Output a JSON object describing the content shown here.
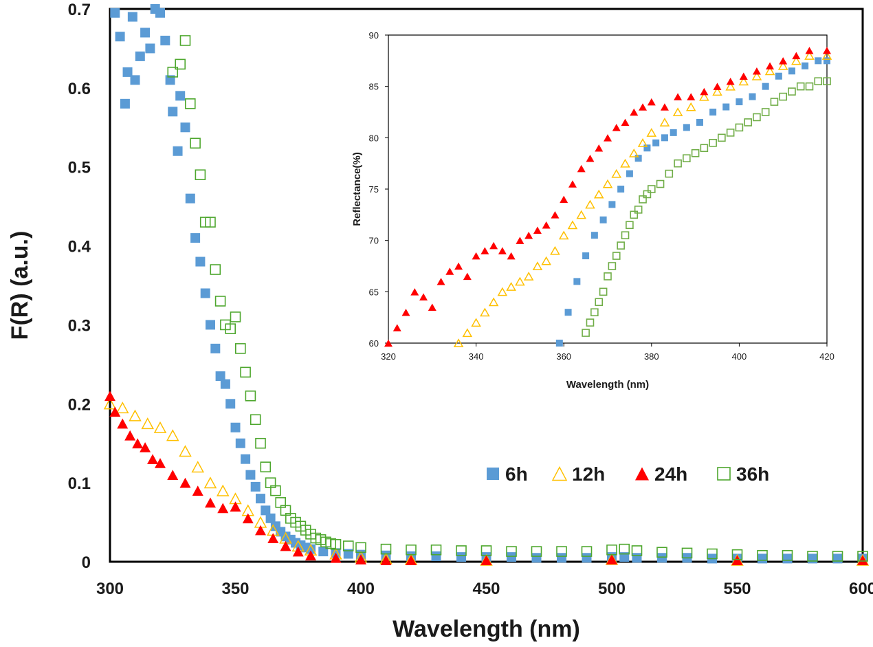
{
  "chart_data": [
    {
      "type": "scatter",
      "title": "",
      "xlabel": "Wavelength (nm)",
      "ylabel": "F(R) (a.u.)",
      "xlim": [
        300,
        600
      ],
      "ylim": [
        0,
        0.7
      ],
      "xticks": [
        "300",
        "350",
        "400",
        "450",
        "500",
        "550",
        "600"
      ],
      "yticks": [
        "0",
        "0.1",
        "0.2",
        "0.3",
        "0.4",
        "0.5",
        "0.6",
        "0.7"
      ],
      "grid": false,
      "legend_position": "center-right",
      "series": [
        {
          "name": "6h",
          "marker": "filled-square",
          "color": "#5B9BD5",
          "x": [
            302,
            304,
            306,
            307,
            309,
            310,
            312,
            314,
            316,
            318,
            320,
            322,
            324,
            325,
            327,
            328,
            330,
            332,
            334,
            336,
            338,
            340,
            342,
            344,
            346,
            348,
            350,
            352,
            354,
            356,
            358,
            360,
            362,
            364,
            366,
            368,
            370,
            372,
            374,
            376,
            378,
            380,
            385,
            390,
            395,
            400,
            410,
            420,
            430,
            440,
            450,
            460,
            470,
            480,
            490,
            500,
            505,
            510,
            520,
            530,
            540,
            550,
            560,
            570,
            580,
            590,
            600
          ],
          "y": [
            0.695,
            0.665,
            0.58,
            0.62,
            0.69,
            0.61,
            0.64,
            0.67,
            0.65,
            0.7,
            0.695,
            0.66,
            0.61,
            0.57,
            0.52,
            0.59,
            0.55,
            0.46,
            0.41,
            0.38,
            0.34,
            0.3,
            0.27,
            0.235,
            0.225,
            0.2,
            0.17,
            0.15,
            0.13,
            0.11,
            0.095,
            0.08,
            0.065,
            0.055,
            0.045,
            0.038,
            0.032,
            0.028,
            0.024,
            0.021,
            0.018,
            0.016,
            0.013,
            0.011,
            0.01,
            0.009,
            0.008,
            0.007,
            0.007,
            0.006,
            0.006,
            0.006,
            0.005,
            0.005,
            0.005,
            0.006,
            0.006,
            0.005,
            0.005,
            0.005,
            0.004,
            0.004,
            0.004,
            0.004,
            0.004,
            0.004,
            0.004
          ]
        },
        {
          "name": "12h",
          "marker": "open-triangle",
          "color": "#FFC000",
          "x": [
            300,
            305,
            310,
            315,
            320,
            325,
            330,
            335,
            340,
            345,
            350,
            355,
            360,
            365,
            370,
            375,
            380,
            390,
            400,
            410,
            420,
            450,
            500,
            550,
            600
          ],
          "y": [
            0.2,
            0.195,
            0.185,
            0.175,
            0.17,
            0.16,
            0.14,
            0.12,
            0.1,
            0.09,
            0.08,
            0.065,
            0.05,
            0.04,
            0.03,
            0.02,
            0.015,
            0.01,
            0.006,
            0.004,
            0.003,
            0.002,
            0.003,
            0.002,
            0.002
          ]
        },
        {
          "name": "24h",
          "marker": "filled-triangle",
          "color": "#FF0000",
          "x": [
            300,
            302,
            305,
            308,
            311,
            314,
            317,
            320,
            325,
            330,
            335,
            340,
            345,
            350,
            355,
            360,
            365,
            370,
            375,
            380,
            390,
            400,
            410,
            420,
            450,
            500,
            550,
            600
          ],
          "y": [
            0.21,
            0.19,
            0.175,
            0.16,
            0.15,
            0.145,
            0.13,
            0.125,
            0.11,
            0.1,
            0.09,
            0.075,
            0.068,
            0.07,
            0.055,
            0.04,
            0.03,
            0.02,
            0.013,
            0.008,
            0.005,
            0.003,
            0.002,
            0.002,
            0.002,
            0.003,
            0.002,
            0.002
          ]
        },
        {
          "name": "36h",
          "marker": "open-square",
          "color": "#4EA72E",
          "x": [
            325,
            328,
            330,
            332,
            334,
            336,
            338,
            340,
            342,
            344,
            346,
            348,
            350,
            352,
            354,
            356,
            358,
            360,
            362,
            364,
            366,
            368,
            370,
            372,
            374,
            376,
            378,
            380,
            382,
            384,
            386,
            388,
            390,
            395,
            400,
            410,
            420,
            430,
            440,
            450,
            460,
            470,
            480,
            490,
            500,
            505,
            510,
            520,
            530,
            540,
            550,
            560,
            570,
            580,
            590,
            600
          ],
          "y": [
            0.62,
            0.63,
            0.66,
            0.58,
            0.53,
            0.49,
            0.43,
            0.43,
            0.37,
            0.33,
            0.3,
            0.295,
            0.31,
            0.27,
            0.24,
            0.21,
            0.18,
            0.15,
            0.12,
            0.1,
            0.09,
            0.075,
            0.065,
            0.055,
            0.05,
            0.045,
            0.04,
            0.035,
            0.03,
            0.028,
            0.025,
            0.023,
            0.022,
            0.02,
            0.018,
            0.016,
            0.015,
            0.015,
            0.014,
            0.014,
            0.013,
            0.013,
            0.013,
            0.013,
            0.015,
            0.016,
            0.014,
            0.012,
            0.011,
            0.01,
            0.009,
            0.008,
            0.008,
            0.007,
            0.007,
            0.007
          ]
        }
      ]
    },
    {
      "type": "scatter",
      "title": "",
      "xlabel": "Wavelength (nm)",
      "ylabel": "Reflectance(%)",
      "xlim": [
        320,
        420
      ],
      "ylim": [
        60,
        90
      ],
      "xticks": [
        "320",
        "340",
        "360",
        "380",
        "400",
        "420"
      ],
      "yticks": [
        "60",
        "65",
        "70",
        "75",
        "80",
        "85",
        "90"
      ],
      "grid": false,
      "legend_position": "none",
      "series": [
        {
          "name": "6h",
          "marker": "filled-square",
          "color": "#5B9BD5",
          "x": [
            359,
            361,
            363,
            365,
            367,
            369,
            371,
            373,
            375,
            377,
            379,
            381,
            383,
            385,
            388,
            391,
            394,
            397,
            400,
            403,
            406,
            409,
            412,
            415,
            418,
            420
          ],
          "y": [
            60,
            63,
            66,
            68.5,
            70.5,
            72,
            73.5,
            75,
            76.5,
            78,
            79,
            79.5,
            80,
            80.5,
            81,
            81.5,
            82.5,
            83,
            83.5,
            84,
            85,
            86,
            86.5,
            87,
            87.5,
            87.5
          ]
        },
        {
          "name": "12h",
          "marker": "open-triangle",
          "color": "#FFC000",
          "x": [
            336,
            338,
            340,
            342,
            344,
            346,
            348,
            350,
            352,
            354,
            356,
            358,
            360,
            362,
            364,
            366,
            368,
            370,
            372,
            374,
            376,
            378,
            380,
            383,
            386,
            389,
            392,
            395,
            398,
            401,
            404,
            407,
            410,
            413,
            416,
            420
          ],
          "y": [
            60,
            61,
            62,
            63,
            64,
            65,
            65.5,
            66,
            66.5,
            67.5,
            68,
            69,
            70.5,
            71.5,
            72.5,
            73.5,
            74.5,
            75.5,
            76.5,
            77.5,
            78.5,
            79.5,
            80.5,
            81.5,
            82.5,
            83,
            84,
            84.5,
            85,
            85.5,
            86,
            86.5,
            87,
            87.5,
            88,
            88
          ]
        },
        {
          "name": "24h",
          "marker": "filled-triangle",
          "color": "#FF0000",
          "x": [
            320,
            322,
            324,
            326,
            328,
            330,
            332,
            334,
            336,
            338,
            340,
            342,
            344,
            346,
            348,
            350,
            352,
            354,
            356,
            358,
            360,
            362,
            364,
            366,
            368,
            370,
            372,
            374,
            376,
            378,
            380,
            383,
            386,
            389,
            392,
            395,
            398,
            401,
            404,
            407,
            410,
            413,
            416,
            420
          ],
          "y": [
            60,
            61.5,
            63,
            65,
            64.5,
            63.5,
            66,
            67,
            67.5,
            66.5,
            68.5,
            69,
            69.5,
            69,
            68.5,
            70,
            70.5,
            71,
            71.5,
            72.5,
            74,
            75.5,
            77,
            78,
            79,
            80,
            81,
            81.5,
            82.5,
            83,
            83.5,
            83,
            84,
            84,
            84.5,
            85,
            85.5,
            86,
            86.5,
            87,
            87.5,
            88,
            88.5,
            88.5
          ]
        },
        {
          "name": "36h",
          "marker": "open-square",
          "color": "#70AD47",
          "x": [
            365,
            366,
            367,
            368,
            369,
            370,
            371,
            372,
            373,
            374,
            375,
            376,
            377,
            378,
            379,
            380,
            382,
            384,
            386,
            388,
            390,
            392,
            394,
            396,
            398,
            400,
            402,
            404,
            406,
            408,
            410,
            412,
            414,
            416,
            418,
            420
          ],
          "y": [
            61,
            62,
            63,
            64,
            65,
            66.5,
            67.5,
            68.5,
            69.5,
            70.5,
            71.5,
            72.5,
            73,
            74,
            74.5,
            75,
            75.5,
            76.5,
            77.5,
            78,
            78.5,
            79,
            79.5,
            80,
            80.5,
            81,
            81.5,
            82,
            82.5,
            83.5,
            84,
            84.5,
            85,
            85,
            85.5,
            85.5
          ]
        }
      ]
    }
  ]
}
